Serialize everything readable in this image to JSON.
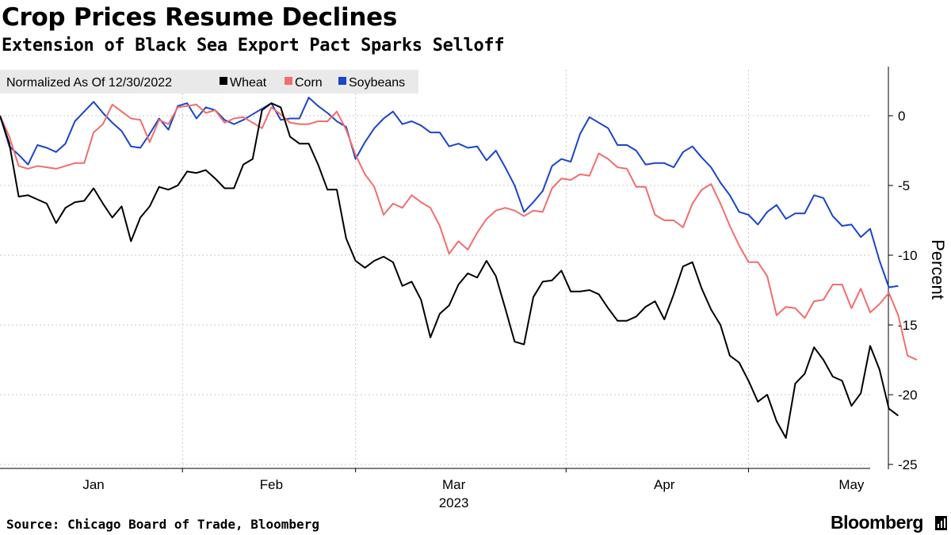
{
  "header": {
    "title": "Crop Prices Resume Declines",
    "subtitle": "Extension of Black Sea Export Pact Sparks Selloff"
  },
  "footer": {
    "source": "Source: Chicago Board of Trade, Bloomberg",
    "brand": "Bloomberg"
  },
  "colors": {
    "wheat": "#000000",
    "corn": "#f26d6d",
    "soybeans": "#1a45c8",
    "grid": "#c8c8c8",
    "legend_bg": "#e9e9e9"
  },
  "chart_data": {
    "type": "line",
    "title": "Crop Prices Resume Declines",
    "subtitle": "Extension of Black Sea Export Pact Sparks Selloff",
    "legend_title": "Normalized As Of 12/30/2022",
    "legend_position": "top-left",
    "ylabel": "Percent",
    "xlabel": "2023",
    "ylim": [
      -25,
      3.5
    ],
    "yticks": [
      0,
      -5,
      -10,
      -15,
      -20,
      -25
    ],
    "ytick_labels": [
      "0",
      "-5",
      "-10",
      "-15",
      "-20",
      "-25"
    ],
    "xlim": [
      0,
      93
    ],
    "month_labels": [
      {
        "label": "Jan",
        "x": 10
      },
      {
        "label": "Feb",
        "x": 29
      },
      {
        "label": "Mar",
        "x": 48.5
      },
      {
        "label": "Apr",
        "x": 71
      },
      {
        "label": "May",
        "x": 91
      }
    ],
    "month_boundaries": [
      19.5,
      38,
      60.5,
      80
    ],
    "year_label": "2023",
    "year_x": 48.5,
    "grid": true,
    "series": [
      {
        "name": "Wheat",
        "color": "#000000",
        "values": [
          0,
          -2,
          -5.8,
          -5.7,
          -6,
          -6.3,
          -7.7,
          -6.6,
          -6.2,
          -6.1,
          -5.2,
          -6.3,
          -7.3,
          -6.5,
          -9,
          -7.3,
          -6.5,
          -5.1,
          -5.3,
          -5,
          -4,
          -4.1,
          -3.9,
          -4.5,
          -5.2,
          -5.2,
          -3.5,
          -3.1,
          0.4,
          0.9,
          0.6,
          -1.5,
          -2,
          -2,
          -3.5,
          -5.3,
          -5.3,
          -8.8,
          -10.4,
          -10.9,
          -10.4,
          -10.1,
          -10.5,
          -12.2,
          -11.9,
          -13.2,
          -15.9,
          -14.2,
          -13.6,
          -12.1,
          -11.3,
          -11.6,
          -10.4,
          -11.5,
          -13.8,
          -16.2,
          -16.4,
          -13,
          -11.9,
          -11.8,
          -11.1,
          -12.6,
          -12.6,
          -12.5,
          -12.8,
          -13.8,
          -14.7,
          -14.7,
          -14.4,
          -13.7,
          -13.3,
          -14.6,
          -12.8,
          -10.8,
          -10.5,
          -12.4,
          -13.9,
          -15,
          -17.2,
          -17.7,
          -19,
          -20.5,
          -20,
          -21.9,
          -23.1,
          -19.2,
          -18.5,
          -16.6,
          -17.5,
          -18.7,
          -19,
          -20.8,
          -19.9,
          -16.5,
          -18.2,
          -21,
          -21.5
        ]
      },
      {
        "name": "Corn",
        "color": "#f26d6d",
        "values": [
          0,
          -1.5,
          -3.6,
          -3.8,
          -3.6,
          -3.7,
          -3.8,
          -3.6,
          -3.4,
          -3.4,
          -1.2,
          -0.6,
          0.8,
          0.3,
          -0.2,
          -0.3,
          -1.9,
          -0.3,
          -0.6,
          0.6,
          0.7,
          0.8,
          0.2,
          0.4,
          -0.5,
          -0.2,
          -0.1,
          -0.5,
          -0.9,
          0.6,
          0.1,
          -0.5,
          -0.6,
          -0.6,
          -0.4,
          -0.4,
          0.3,
          -1,
          -2.8,
          -4.2,
          -5.1,
          -7.1,
          -6.3,
          -6.6,
          -5.7,
          -6.2,
          -6.6,
          -7.9,
          -9.9,
          -9,
          -9.6,
          -8.4,
          -7.4,
          -6.8,
          -6.6,
          -6.8,
          -7.2,
          -6.8,
          -6.9,
          -5.2,
          -4.5,
          -4.6,
          -4.2,
          -4.3,
          -2.7,
          -3.1,
          -3.7,
          -3.8,
          -5.1,
          -5.1,
          -7.1,
          -7.5,
          -7.5,
          -8,
          -6.3,
          -5.3,
          -4.9,
          -6.3,
          -7.9,
          -9.3,
          -10.5,
          -10.5,
          -11.5,
          -14.3,
          -13.7,
          -13.8,
          -14.5,
          -13.3,
          -13.2,
          -12.1,
          -12.1,
          -13.8,
          -12.4,
          -14.1,
          -13.5,
          -12.7,
          -14.3,
          -17.2,
          -17.5
        ]
      },
      {
        "name": "Soybeans",
        "color": "#1a45c8",
        "values": [
          0,
          -2.2,
          -2.8,
          -3.5,
          -2.1,
          -2.3,
          -2.6,
          -2,
          -0.4,
          0.3,
          1,
          0.2,
          -0.5,
          -1.1,
          -2.2,
          -2.3,
          -1.3,
          -0.2,
          -1,
          0.7,
          0.9,
          -0.2,
          0.6,
          0.4,
          -0.3,
          -0.6,
          -0.3,
          0.1,
          0.5,
          0.9,
          -0.3,
          -0.2,
          -0.2,
          1.3,
          0.7,
          0.2,
          -0.4,
          -0.8,
          -3.1,
          -1.9,
          -0.9,
          -0.2,
          0.3,
          -0.6,
          -0.4,
          -0.7,
          -1.2,
          -1.2,
          -2.2,
          -2,
          -2.3,
          -2.2,
          -3.2,
          -2.5,
          -3.7,
          -5,
          -6.9,
          -6.2,
          -5.4,
          -3.6,
          -3.1,
          -3.3,
          -1.3,
          -0.1,
          -0.5,
          -0.9,
          -2.1,
          -2.1,
          -2.5,
          -3.5,
          -3.4,
          -3.4,
          -3.7,
          -2.6,
          -2.2,
          -3,
          -3.7,
          -4.8,
          -5.7,
          -6.9,
          -7.1,
          -7.8,
          -6.9,
          -6.4,
          -7.4,
          -7,
          -7,
          -5.7,
          -5.9,
          -7.2,
          -7.9,
          -7.8,
          -8.7,
          -8.1,
          -10.4,
          -12.3,
          -12.2
        ]
      }
    ]
  }
}
